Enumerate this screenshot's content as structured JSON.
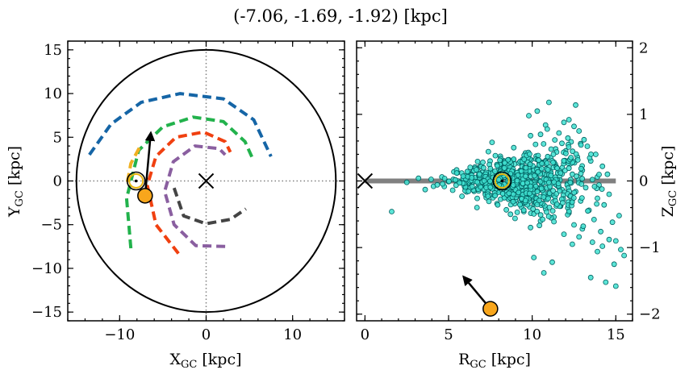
{
  "title": "(-7.06, -1.69, -1.92) [kpc]",
  "chart_data": [
    {
      "type": "scatter",
      "panel": "left",
      "xlabel": "X",
      "xlabel_sub": "GC",
      "xlabel_unit": " [kpc]",
      "ylabel": "Y",
      "ylabel_sub": "GC",
      "ylabel_unit": " [kpc]",
      "xlim": [
        -16,
        16
      ],
      "ylim": [
        -16,
        16
      ],
      "xticks": [
        -10,
        0,
        10
      ],
      "xtick_labels": [
        "−10",
        "0",
        "10"
      ],
      "yticks": [
        -15,
        -10,
        -5,
        0,
        5,
        10,
        15
      ],
      "ytick_labels": [
        "−15",
        "−10",
        "−5",
        "0",
        "5",
        "10",
        "15"
      ],
      "boundary_circle_radius": 15,
      "reference_lines": {
        "x": 0,
        "y": 0,
        "style": "dotted",
        "color": "#808080"
      },
      "galactic_center_marker": [
        0,
        0
      ],
      "arms": [
        {
          "color": "#1565a6",
          "points": [
            [
              -13.5,
              3
            ],
            [
              -11,
              6.5
            ],
            [
              -7.5,
              9
            ],
            [
              -3,
              10
            ],
            [
              2,
              9.4
            ],
            [
              5.5,
              7
            ],
            [
              7.5,
              2.8
            ]
          ]
        },
        {
          "color": "#22b24c",
          "points": [
            [
              -8.7,
              -7.7
            ],
            [
              -9.2,
              -2
            ],
            [
              -7.8,
              3.5
            ],
            [
              -5,
              6.2
            ],
            [
              -1.5,
              7.3
            ],
            [
              2,
              6.8
            ],
            [
              4.5,
              4.5
            ],
            [
              5.4,
              2.5
            ]
          ]
        },
        {
          "color": "#f0b020",
          "points": [
            [
              -9.1,
              -0.1
            ],
            [
              -8.7,
              2
            ],
            [
              -7.6,
              4
            ]
          ]
        },
        {
          "color": "#f04010",
          "points": [
            [
              -3.2,
              -8.3
            ],
            [
              -5.8,
              -5
            ],
            [
              -6.8,
              -0.5
            ],
            [
              -5.8,
              2.8
            ],
            [
              -3.5,
              5
            ],
            [
              -0.3,
              5.6
            ],
            [
              2.2,
              4.5
            ],
            [
              2.8,
              3.3
            ]
          ]
        },
        {
          "color": "#8a5fa0",
          "points": [
            [
              2.2,
              -7.5
            ],
            [
              -1.2,
              -7.4
            ],
            [
              -3.7,
              -5
            ],
            [
              -4.8,
              -1.2
            ],
            [
              -3.8,
              2.2
            ],
            [
              -1.3,
              4
            ],
            [
              1.5,
              3.7
            ],
            [
              2.2,
              3
            ]
          ]
        },
        {
          "color": "#444444",
          "points": [
            [
              -3.7,
              -0.8
            ],
            [
              -2.6,
              -4
            ],
            [
              0,
              -4.9
            ],
            [
              2.8,
              -4.4
            ],
            [
              4.6,
              -3.2
            ]
          ]
        }
      ],
      "sun": [
        -8.1,
        0
      ],
      "object": {
        "position": [
          -7.06,
          -1.69
        ],
        "velocity_arrow_end": [
          -6.4,
          5.5
        ]
      }
    },
    {
      "type": "scatter",
      "panel": "right",
      "xlabel": "R",
      "xlabel_sub": "GC",
      "xlabel_unit": " [kpc]",
      "ylabel": "Z",
      "ylabel_sub": "GC",
      "ylabel_unit": " [kpc]",
      "xlim": [
        -0.5,
        16
      ],
      "ylim": [
        -2.1,
        2.1
      ],
      "xticks": [
        0,
        5,
        10,
        15
      ],
      "xtick_labels": [
        "0",
        "5",
        "10",
        "15"
      ],
      "yticks": [
        -2,
        -1,
        0,
        1,
        2
      ],
      "ytick_labels": [
        "−2",
        "−1",
        "0",
        "1",
        "2"
      ],
      "disk_band": {
        "r": [
          0,
          15
        ],
        "z": 0
      },
      "galactic_center_marker": [
        0,
        0
      ],
      "sun": [
        8.2,
        0
      ],
      "object": {
        "position": [
          7.5,
          -1.92
        ],
        "velocity_arrow_end": [
          5.9,
          -1.44
        ]
      },
      "stars": {
        "color": "#40e0d0",
        "edge": "#006060",
        "points": [
          [
            11.0,
            1.18
          ],
          [
            12.6,
            1.14
          ],
          [
            10.3,
            1.05
          ],
          [
            9.8,
            0.98
          ],
          [
            12.2,
            0.92
          ],
          [
            11.9,
            0.88
          ],
          [
            10.8,
            0.84
          ],
          [
            12.5,
            0.82
          ],
          [
            12.8,
            0.75
          ],
          [
            10.5,
            0.7
          ],
          [
            10.9,
            0.78
          ],
          [
            11.6,
            0.72
          ],
          [
            9.9,
            0.68
          ],
          [
            13.1,
            0.62
          ],
          [
            7.6,
            0.58
          ],
          [
            12.9,
            0.56
          ],
          [
            13.3,
            0.52
          ],
          [
            10.2,
            0.55
          ],
          [
            8.9,
            0.5
          ],
          [
            11.4,
            0.48
          ],
          [
            12.0,
            0.45
          ],
          [
            9.6,
            0.42
          ],
          [
            13.8,
            0.4
          ],
          [
            7.8,
            0.38
          ],
          [
            12.7,
            0.36
          ],
          [
            11.1,
            0.35
          ],
          [
            8.6,
            0.32
          ],
          [
            13.5,
            0.3
          ],
          [
            10.6,
            0.28
          ],
          [
            9.2,
            0.27
          ],
          [
            12.3,
            0.26
          ],
          [
            6.9,
            0.22
          ],
          [
            14.2,
            0.22
          ],
          [
            11.8,
            0.2
          ],
          [
            8.1,
            0.18
          ],
          [
            13.0,
            0.16
          ],
          [
            10.0,
            0.15
          ],
          [
            5.5,
            0.12
          ],
          [
            6.2,
            0.12
          ],
          [
            9.4,
            0.1
          ],
          [
            12.4,
            0.1
          ],
          [
            14.5,
            0.1
          ],
          [
            7.4,
            0.08
          ],
          [
            4.6,
            0.06
          ],
          [
            11.2,
            0.05
          ],
          [
            3.2,
            0.04
          ],
          [
            8.8,
            0.03
          ],
          [
            13.6,
            0.02
          ],
          [
            6.6,
            0.02
          ],
          [
            10.4,
            0.01
          ],
          [
            5.0,
            -0.01
          ],
          [
            2.5,
            -0.02
          ],
          [
            9.0,
            -0.03
          ],
          [
            12.1,
            -0.04
          ],
          [
            7.0,
            -0.05
          ],
          [
            14.0,
            -0.06
          ],
          [
            11.5,
            -0.07
          ],
          [
            4.1,
            -0.08
          ],
          [
            8.3,
            -0.09
          ],
          [
            13.2,
            -0.1
          ],
          [
            6.0,
            -0.11
          ],
          [
            10.7,
            -0.12
          ],
          [
            3.6,
            -0.13
          ],
          [
            9.7,
            -0.15
          ],
          [
            12.6,
            -0.16
          ],
          [
            7.2,
            -0.18
          ],
          [
            14.6,
            -0.2
          ],
          [
            11.0,
            -0.22
          ],
          [
            5.8,
            -0.23
          ],
          [
            8.5,
            -0.25
          ],
          [
            13.9,
            -0.26
          ],
          [
            10.1,
            -0.28
          ],
          [
            1.6,
            -0.46
          ],
          [
            12.9,
            -0.3
          ],
          [
            9.3,
            -0.32
          ],
          [
            7.9,
            -0.34
          ],
          [
            14.3,
            -0.36
          ],
          [
            11.7,
            -0.38
          ],
          [
            6.7,
            -0.4
          ],
          [
            10.8,
            -0.42
          ],
          [
            13.4,
            -0.44
          ],
          [
            9.5,
            -0.46
          ],
          [
            12.2,
            -0.48
          ],
          [
            8.7,
            -0.5
          ],
          [
            15.2,
            -0.52
          ],
          [
            11.3,
            -0.54
          ],
          [
            13.7,
            -0.58
          ],
          [
            10.5,
            -0.6
          ],
          [
            14.8,
            -0.62
          ],
          [
            12.5,
            -0.66
          ],
          [
            9.9,
            -0.7
          ],
          [
            13.0,
            -0.72
          ],
          [
            14.1,
            -0.76
          ],
          [
            11.9,
            -0.8
          ],
          [
            12.8,
            -0.84
          ],
          [
            14.6,
            -0.88
          ],
          [
            13.6,
            -0.92
          ],
          [
            15.0,
            -0.9
          ],
          [
            12.4,
            -0.95
          ],
          [
            14.2,
            -0.98
          ],
          [
            15.3,
            -1.03
          ],
          [
            13.9,
            -1.06
          ],
          [
            10.1,
            -1.15
          ],
          [
            11.2,
            -1.22
          ],
          [
            14.9,
            -1.25
          ],
          [
            15.5,
            -1.12
          ],
          [
            10.7,
            -1.38
          ],
          [
            13.5,
            -1.45
          ],
          [
            14.4,
            -1.52
          ],
          [
            15.0,
            -1.58
          ]
        ]
      }
    }
  ]
}
